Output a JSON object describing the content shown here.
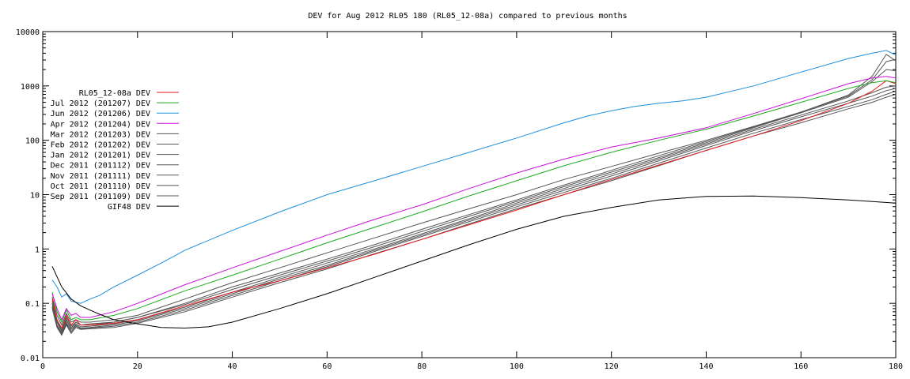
{
  "chart_data": {
    "type": "line",
    "title": "DEV for Aug 2012 RL05 180 (RL05_12-08a) compared to previous months",
    "xlabel": "",
    "ylabel": "",
    "xlim": [
      0,
      180
    ],
    "ylim": [
      0.01,
      10000
    ],
    "yscale": "log",
    "grid": false,
    "legend_position": "top-left",
    "x_ticks": [
      "0",
      "20",
      "40",
      "60",
      "80",
      "100",
      "120",
      "140",
      "160",
      "180"
    ],
    "y_ticks": [
      "0.01",
      "0.1",
      "1",
      "10",
      "100",
      "1000",
      "10000"
    ],
    "series": [
      {
        "name": "RL05_12-08a DEV",
        "color": "#e41a1c",
        "x": [
          2,
          3,
          4,
          5,
          6,
          7,
          8,
          10,
          15,
          20,
          30,
          40,
          50,
          60,
          70,
          80,
          90,
          100,
          110,
          120,
          130,
          140,
          150,
          160,
          170,
          175,
          178,
          180
        ],
        "y": [
          0.12,
          0.05,
          0.035,
          0.06,
          0.04,
          0.05,
          0.04,
          0.04,
          0.043,
          0.05,
          0.09,
          0.16,
          0.26,
          0.45,
          0.8,
          1.5,
          2.8,
          5.2,
          10,
          19,
          35,
          65,
          120,
          230,
          480,
          800,
          1250,
          1100
        ]
      },
      {
        "name": "Jul 2012 (201207) DEV",
        "color": "#1fa81f",
        "x": [
          2,
          3,
          4,
          5,
          6,
          7,
          8,
          10,
          15,
          20,
          30,
          40,
          50,
          60,
          70,
          80,
          90,
          100,
          110,
          120,
          130,
          140,
          150,
          160,
          170,
          175,
          178,
          180
        ],
        "y": [
          0.16,
          0.07,
          0.045,
          0.075,
          0.05,
          0.055,
          0.05,
          0.05,
          0.06,
          0.08,
          0.17,
          0.33,
          0.65,
          1.3,
          2.5,
          4.8,
          9.5,
          18,
          34,
          60,
          100,
          160,
          280,
          500,
          900,
          1150,
          1250,
          1150
        ]
      },
      {
        "name": "Jun 2012 (201206) DEV",
        "color": "#1e8fdc",
        "x": [
          2,
          3,
          4,
          5,
          6,
          8,
          10,
          12,
          15,
          20,
          25,
          30,
          40,
          50,
          60,
          70,
          80,
          90,
          100,
          110,
          115,
          120,
          125,
          130,
          135,
          140,
          150,
          160,
          170,
          175,
          178,
          180
        ],
        "y": [
          0.27,
          0.2,
          0.13,
          0.15,
          0.11,
          0.1,
          0.12,
          0.14,
          0.2,
          0.33,
          0.55,
          0.95,
          2.2,
          4.8,
          10,
          18,
          33,
          60,
          110,
          210,
          280,
          350,
          420,
          480,
          530,
          620,
          1000,
          1800,
          3200,
          4000,
          4500,
          3700
        ]
      },
      {
        "name": "Apr 2012 (201204) DEV",
        "color": "#c90fdc",
        "x": [
          2,
          3,
          4,
          5,
          6,
          7,
          8,
          10,
          15,
          20,
          30,
          40,
          50,
          60,
          70,
          80,
          90,
          100,
          110,
          120,
          130,
          140,
          150,
          160,
          170,
          175,
          178,
          180
        ],
        "y": [
          0.15,
          0.08,
          0.05,
          0.08,
          0.06,
          0.065,
          0.055,
          0.055,
          0.07,
          0.1,
          0.22,
          0.45,
          0.9,
          1.8,
          3.5,
          6.5,
          13,
          25,
          45,
          75,
          110,
          170,
          310,
          580,
          1100,
          1400,
          1500,
          1400
        ]
      },
      {
        "name": "Mar 2012 (201203) DEV",
        "color": "#555555",
        "x": [
          2,
          3,
          4,
          5,
          6,
          7,
          8,
          10,
          15,
          20,
          30,
          40,
          50,
          60,
          70,
          80,
          90,
          100,
          110,
          120,
          130,
          140,
          150,
          160,
          170,
          175,
          178,
          180
        ],
        "y": [
          0.13,
          0.06,
          0.04,
          0.065,
          0.045,
          0.05,
          0.045,
          0.045,
          0.05,
          0.06,
          0.12,
          0.24,
          0.45,
          0.85,
          1.6,
          3,
          5.5,
          10,
          19,
          33,
          58,
          100,
          180,
          330,
          650,
          1300,
          2800,
          3100
        ]
      },
      {
        "name": "Feb 2012 (201202) DEV",
        "color": "#555555",
        "x": [
          2,
          3,
          4,
          5,
          6,
          7,
          8,
          10,
          15,
          20,
          30,
          40,
          50,
          60,
          70,
          80,
          90,
          100,
          110,
          120,
          130,
          140,
          150,
          160,
          170,
          175,
          178,
          180
        ],
        "y": [
          0.1,
          0.045,
          0.03,
          0.05,
          0.035,
          0.045,
          0.04,
          0.042,
          0.045,
          0.055,
          0.1,
          0.2,
          0.36,
          0.65,
          1.2,
          2.3,
          4.3,
          8,
          15,
          28,
          52,
          95,
          175,
          330,
          680,
          1500,
          3800,
          2900
        ]
      },
      {
        "name": "Jan 2012 (201201) DEV",
        "color": "#555555",
        "x": [
          2,
          3,
          4,
          5,
          6,
          7,
          8,
          10,
          15,
          20,
          30,
          40,
          50,
          60,
          70,
          80,
          90,
          100,
          110,
          120,
          130,
          140,
          150,
          160,
          170,
          175,
          178,
          180
        ],
        "y": [
          0.11,
          0.05,
          0.032,
          0.055,
          0.038,
          0.045,
          0.04,
          0.04,
          0.045,
          0.055,
          0.095,
          0.18,
          0.33,
          0.6,
          1.1,
          2.1,
          4,
          7.5,
          14,
          26,
          48,
          90,
          170,
          320,
          620,
          1200,
          2000,
          1900
        ]
      },
      {
        "name": "Dec 2011 (201112) DEV",
        "color": "#555555",
        "x": [
          2,
          3,
          4,
          5,
          6,
          7,
          8,
          10,
          15,
          20,
          30,
          40,
          50,
          60,
          70,
          80,
          90,
          100,
          110,
          120,
          130,
          140,
          150,
          160,
          170,
          175,
          178,
          180
        ],
        "y": [
          0.1,
          0.045,
          0.03,
          0.05,
          0.033,
          0.042,
          0.037,
          0.038,
          0.042,
          0.05,
          0.085,
          0.16,
          0.3,
          0.55,
          1,
          1.9,
          3.6,
          7,
          13,
          24,
          45,
          85,
          160,
          290,
          530,
          750,
          950,
          1000
        ]
      },
      {
        "name": "Nov 2011 (201111) DEV",
        "color": "#555555",
        "x": [
          2,
          3,
          4,
          5,
          6,
          7,
          8,
          10,
          15,
          20,
          30,
          40,
          50,
          60,
          70,
          80,
          90,
          100,
          110,
          120,
          130,
          140,
          150,
          160,
          170,
          175,
          178,
          180
        ],
        "y": [
          0.09,
          0.04,
          0.028,
          0.045,
          0.03,
          0.04,
          0.035,
          0.036,
          0.04,
          0.048,
          0.08,
          0.15,
          0.28,
          0.5,
          0.95,
          1.8,
          3.4,
          6.5,
          12,
          22,
          42,
          80,
          150,
          270,
          480,
          650,
          820,
          900
        ]
      },
      {
        "name": "Oct 2011 (201110) DEV",
        "color": "#555555",
        "x": [
          2,
          3,
          4,
          5,
          6,
          7,
          8,
          10,
          15,
          20,
          30,
          40,
          50,
          60,
          70,
          80,
          90,
          100,
          110,
          120,
          130,
          140,
          150,
          160,
          170,
          175,
          178,
          180
        ],
        "y": [
          0.085,
          0.038,
          0.027,
          0.042,
          0.03,
          0.038,
          0.034,
          0.035,
          0.038,
          0.045,
          0.075,
          0.14,
          0.26,
          0.47,
          0.9,
          1.7,
          3.2,
          6,
          11,
          20,
          38,
          72,
          135,
          240,
          420,
          560,
          700,
          800
        ]
      },
      {
        "name": "Sep 2011 (201109) DEV",
        "color": "#555555",
        "x": [
          2,
          3,
          4,
          5,
          6,
          7,
          8,
          10,
          15,
          20,
          30,
          40,
          50,
          60,
          70,
          80,
          90,
          100,
          110,
          120,
          130,
          140,
          150,
          160,
          170,
          175,
          178,
          180
        ],
        "y": [
          0.08,
          0.036,
          0.026,
          0.04,
          0.028,
          0.036,
          0.033,
          0.034,
          0.036,
          0.043,
          0.07,
          0.13,
          0.24,
          0.43,
          0.82,
          1.5,
          2.9,
          5.5,
          10,
          18,
          34,
          65,
          120,
          210,
          380,
          500,
          620,
          700
        ]
      },
      {
        "name": "GIF48 DEV",
        "color": "#000000",
        "x": [
          2,
          4,
          6,
          8,
          10,
          12,
          15,
          20,
          25,
          30,
          35,
          40,
          50,
          60,
          70,
          80,
          90,
          100,
          110,
          120,
          130,
          140,
          150,
          160,
          170,
          180
        ],
        "y": [
          0.48,
          0.2,
          0.12,
          0.09,
          0.075,
          0.063,
          0.05,
          0.042,
          0.036,
          0.035,
          0.037,
          0.045,
          0.08,
          0.15,
          0.3,
          0.6,
          1.2,
          2.3,
          4,
          5.8,
          8,
          9.3,
          9.4,
          8.8,
          8,
          7
        ]
      }
    ]
  }
}
